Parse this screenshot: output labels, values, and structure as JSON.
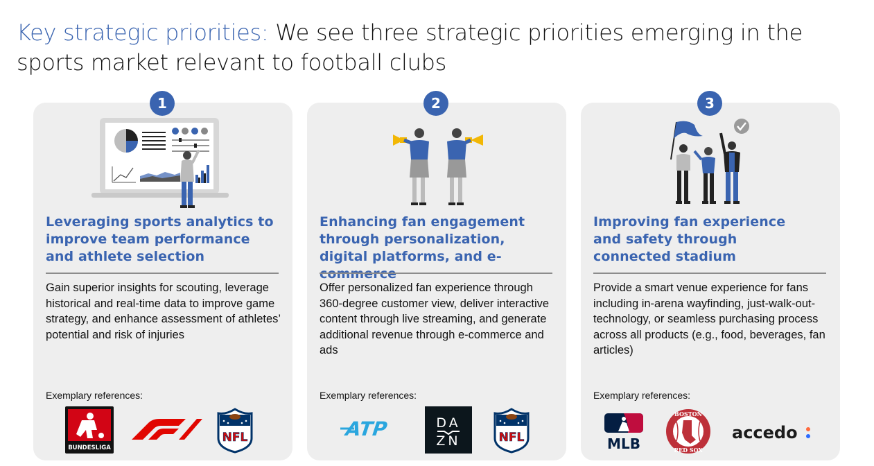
{
  "slide": {
    "title_lead": "Key strategic priorities:",
    "title_rest": " We see three strategic priorities emerging in the sports market relevant to football clubs"
  },
  "priorities": [
    {
      "number": "1",
      "title": "Leveraging sports analytics to improve team performance and athlete selection",
      "description": "Gain superior insights for scouting, leverage historical and real-time data to improve game strategy, and enhance assessment of athletes’ potential and risk of injuries",
      "refs_label": "Exemplary references:",
      "logos": [
        "BUNDESLIGA",
        "F1",
        "NFL"
      ]
    },
    {
      "number": "2",
      "title": "Enhancing fan engagement through personalization, digital platforms, and e-commerce",
      "description": "Offer personalized fan experience through 360-degree customer view, deliver interactive content through live streaming, and generate additional revenue through e-commerce and ads",
      "refs_label": "Exemplary references:",
      "logos": [
        "ATP",
        "DA ZN",
        "NFL"
      ]
    },
    {
      "number": "3",
      "title": "Improving fan experience and safety through connected stadium",
      "description": "Provide a smart venue experience for fans including in-arena wayfinding, just-walk-out-technology, or seamless purchasing process across all products (e.g., food, beverages, fan articles)",
      "refs_label": "Exemplary references:",
      "logos": [
        "MLB",
        "BOSTON RED SOX",
        "accedo"
      ]
    }
  ],
  "logo_text": {
    "bundesliga": "BUNDESLIGA",
    "atp": "ATP",
    "dazn_top": "DA",
    "dazn_bottom": "ZN",
    "nfl": "NFL",
    "mlb": "MLB",
    "redsox_top": "BOSTON",
    "redsox_bottom": "RED SOX",
    "accedo": "accedo"
  },
  "colors": {
    "accent": "#3a64b0",
    "card_bg": "#eeeeee",
    "megaphone": "#f2b705",
    "f1_red": "#e10600",
    "nfl_blue": "#013369",
    "nfl_red": "#d50a0a",
    "redsox_red": "#bd3039"
  }
}
